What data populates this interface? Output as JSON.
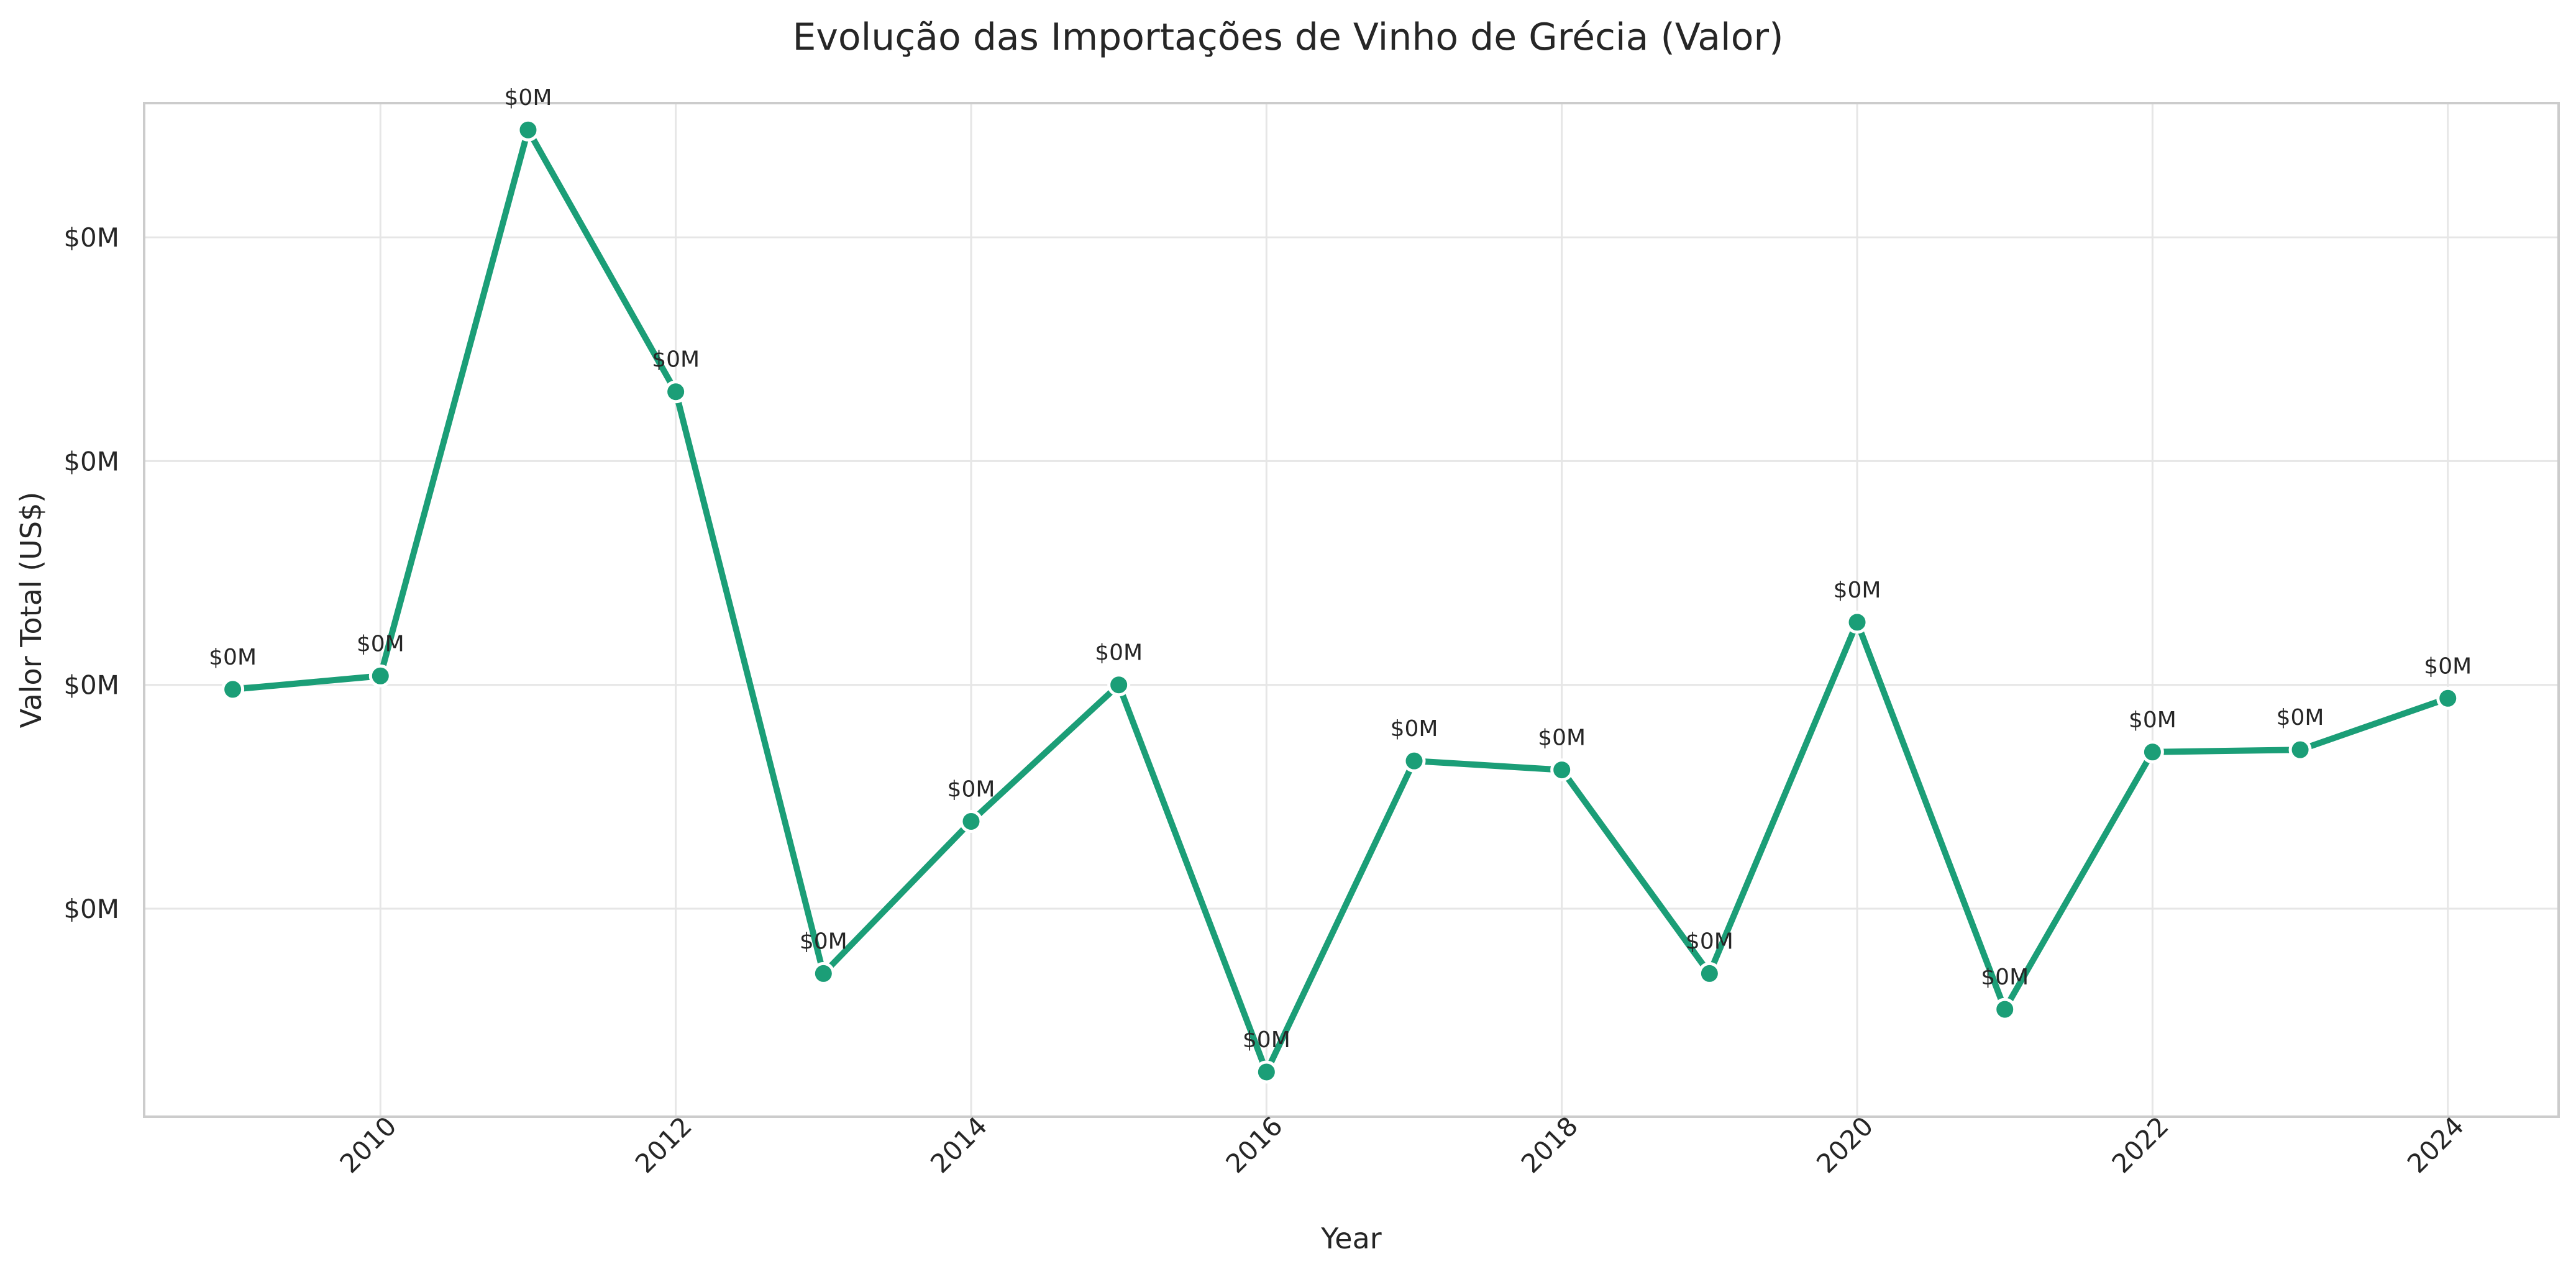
{
  "chart_data": {
    "type": "line",
    "title": "Evolução das Importações de Vinho de Grécia (Valor)",
    "xlabel": "Year",
    "ylabel": "Valor Total (US$)",
    "x": [
      2009,
      2010,
      2011,
      2012,
      2013,
      2014,
      2015,
      2016,
      2017,
      2018,
      2019,
      2020,
      2021,
      2022,
      2023,
      2024
    ],
    "series": [
      {
        "values": [
          9.9,
          10.2,
          22.4,
          16.55,
          3.55,
          6.95,
          10.0,
          1.35,
          8.3,
          8.1,
          3.55,
          11.4,
          2.75,
          8.5,
          8.55,
          9.7
        ],
        "labels": [
          "$0M",
          "$0M",
          "$0M",
          "$0M",
          "$0M",
          "$0M",
          "$0M",
          "$0M",
          "$0M",
          "$0M",
          "$0M",
          "$0M",
          "$0M",
          "$0M",
          "$0M",
          "$0M"
        ],
        "color": "#1b9e77"
      }
    ],
    "xlim": [
      2008.4,
      2024.75
    ],
    "ylim": [
      0.35,
      23.0
    ],
    "xticks": [
      2010,
      2012,
      2014,
      2016,
      2018,
      2020,
      2022,
      2024
    ],
    "xtick_labels": [
      "2010",
      "2012",
      "2014",
      "2016",
      "2018",
      "2020",
      "2022",
      "2024"
    ],
    "yticks": [
      5,
      10,
      15,
      20
    ],
    "ytick_labels": [
      "$0M",
      "$0M",
      "$0M",
      "$0M"
    ],
    "grid": true,
    "legend": "none"
  }
}
